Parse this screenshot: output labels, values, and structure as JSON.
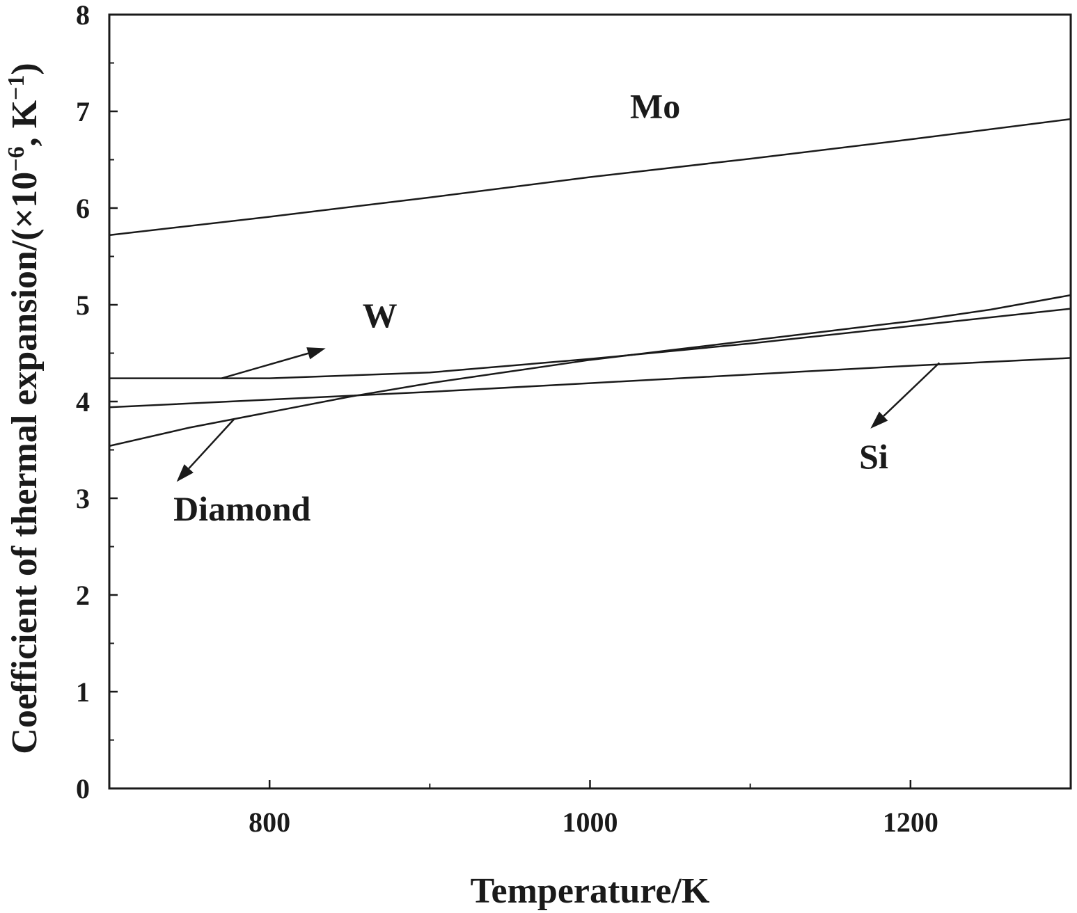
{
  "chart_data": {
    "type": "line",
    "title": "",
    "xlabel": "Temperature/K",
    "ylabel_parts": {
      "main": "Coefficient of thermal expansion/(×10",
      "exp": "−6",
      "mid": ", K",
      "exp2": "−1",
      "end": ")"
    },
    "xlim": [
      700,
      1300
    ],
    "ylim": [
      0,
      8
    ],
    "xticks": [
      800,
      1000,
      1200
    ],
    "xticks_minor": [
      900,
      1100
    ],
    "yticks": [
      0,
      1,
      2,
      3,
      4,
      5,
      6,
      7,
      8
    ],
    "grid": false,
    "colors": {
      "line": "#1a1a1a",
      "axis": "#1a1a1a"
    },
    "series": [
      {
        "name": "Mo",
        "x": [
          700,
          800,
          900,
          1000,
          1100,
          1200,
          1300
        ],
        "y": [
          5.72,
          5.91,
          6.11,
          6.32,
          6.51,
          6.71,
          6.92
        ]
      },
      {
        "name": "W",
        "x": [
          700,
          800,
          900,
          1000,
          1100,
          1200,
          1300
        ],
        "y": [
          4.24,
          4.24,
          4.3,
          4.44,
          4.6,
          4.78,
          4.96
        ]
      },
      {
        "name": "Si",
        "x": [
          700,
          800,
          900,
          1000,
          1100,
          1200,
          1300
        ],
        "y": [
          3.94,
          4.02,
          4.1,
          4.19,
          4.28,
          4.37,
          4.45
        ]
      },
      {
        "name": "Diamond",
        "x": [
          700,
          750,
          800,
          850,
          900,
          950,
          1000,
          1050,
          1100,
          1150,
          1200,
          1250,
          1300
        ],
        "y": [
          3.54,
          3.73,
          3.89,
          4.05,
          4.19,
          4.31,
          4.43,
          4.53,
          4.63,
          4.73,
          4.83,
          4.95,
          5.1
        ]
      }
    ],
    "annotations": [
      {
        "text": "Mo",
        "x": 1025,
        "y": 6.93,
        "arrow": false
      },
      {
        "text": "W",
        "x": 858,
        "y": 4.77,
        "arrow": true,
        "arrow_from": [
          770,
          4.24
        ],
        "arrow_to": [
          835,
          4.55
        ]
      },
      {
        "text": "Si",
        "x": 1168,
        "y": 3.31,
        "arrow": true,
        "arrow_from": [
          1218,
          4.4
        ],
        "arrow_to": [
          1175,
          3.72
        ]
      },
      {
        "text": "Diamond",
        "x": 740,
        "y": 2.77,
        "arrow": true,
        "arrow_from": [
          778,
          3.82
        ],
        "arrow_to": [
          742,
          3.17
        ]
      }
    ]
  }
}
